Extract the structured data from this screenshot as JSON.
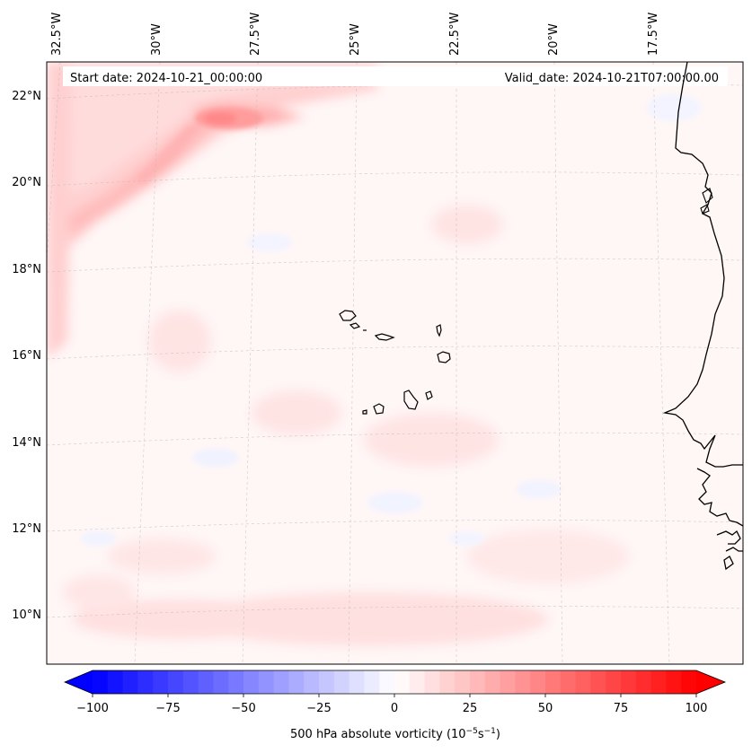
{
  "chart_data": {
    "type": "map",
    "start_date": "Start date: 2024-10-21_00:00:00",
    "valid_date": "Valid_date: 2024-10-21T07:00:00.00",
    "lon_ticks": [
      "32.5°W",
      "30°W",
      "27.5°W",
      "25°W",
      "22.5°W",
      "20°W",
      "17.5°W"
    ],
    "lat_ticks": [
      "22°N",
      "20°N",
      "18°N",
      "16°N",
      "14°N",
      "12°N",
      "10°N"
    ],
    "colorbar": {
      "label": "500 hPa absolute vorticity (10",
      "label_exp1": "−5",
      "label_mid": "s",
      "label_exp2": "−1",
      "label_end": ")",
      "ticks": [
        "−100",
        "−75",
        "−50",
        "−25",
        "0",
        "25",
        "50",
        "75",
        "100"
      ],
      "tick_values": [
        -100,
        -75,
        -50,
        -25,
        0,
        25,
        50,
        75,
        100
      ],
      "vmin": -100,
      "vmax": 100,
      "levels": 40,
      "cmap": "bwr",
      "extend": "both"
    },
    "gridlines": true
  }
}
